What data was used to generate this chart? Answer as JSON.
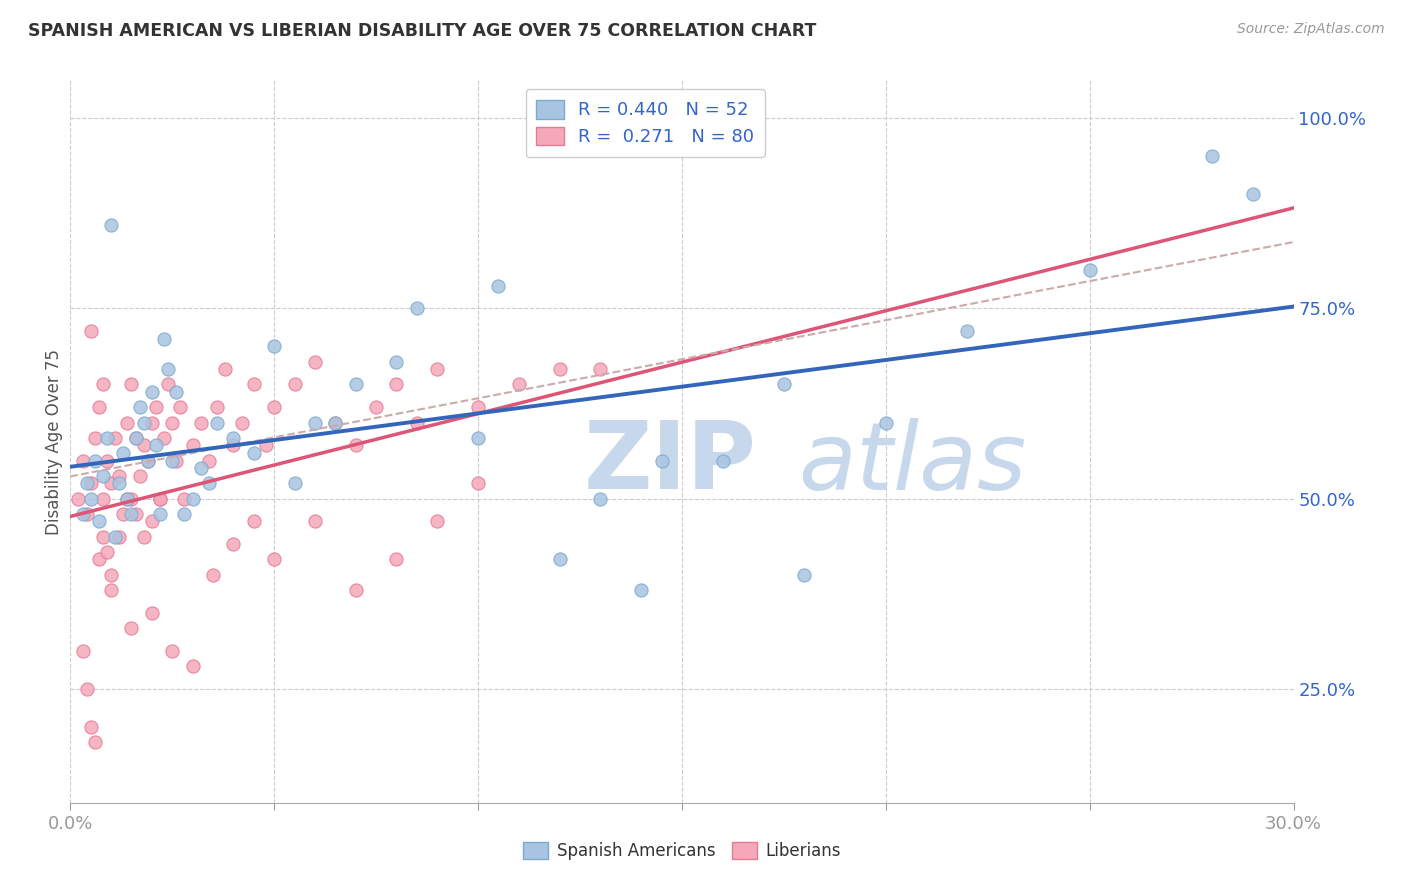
{
  "title": "SPANISH AMERICAN VS LIBERIAN DISABILITY AGE OVER 75 CORRELATION CHART",
  "source_text": "Source: ZipAtlas.com",
  "ylabel": "Disability Age Over 75",
  "xlim": [
    0.0,
    0.3
  ],
  "ylim": [
    0.1,
    1.05
  ],
  "ytick_labels": [
    "25.0%",
    "50.0%",
    "75.0%",
    "100.0%"
  ],
  "ytick_positions": [
    0.25,
    0.5,
    0.75,
    1.0
  ],
  "legend_R1": "R = 0.440",
  "legend_N1": "N = 52",
  "legend_R2": "R = 0.271",
  "legend_N2": "N = 80",
  "blue_color": "#A8C4E0",
  "blue_edge_color": "#7AAAD0",
  "pink_color": "#F4A8B8",
  "pink_edge_color": "#E87898",
  "blue_line_color": "#3366BB",
  "pink_line_color": "#DD5577",
  "dash_line_color": "#CCAAAA",
  "watermark_zip": "ZIP",
  "watermark_atlas": "atlas",
  "blue_scatter_x": [
    0.003,
    0.004,
    0.005,
    0.006,
    0.007,
    0.008,
    0.009,
    0.01,
    0.011,
    0.012,
    0.013,
    0.014,
    0.015,
    0.016,
    0.017,
    0.018,
    0.019,
    0.02,
    0.021,
    0.022,
    0.023,
    0.024,
    0.025,
    0.026,
    0.028,
    0.03,
    0.032,
    0.034,
    0.036,
    0.04,
    0.045,
    0.05,
    0.06,
    0.07,
    0.08,
    0.1,
    0.12,
    0.14,
    0.16,
    0.18,
    0.2,
    0.22,
    0.25,
    0.28,
    0.145,
    0.175,
    0.105,
    0.085,
    0.055,
    0.065,
    0.29,
    0.13
  ],
  "blue_scatter_y": [
    0.48,
    0.52,
    0.5,
    0.55,
    0.47,
    0.53,
    0.58,
    0.86,
    0.45,
    0.52,
    0.56,
    0.5,
    0.48,
    0.58,
    0.62,
    0.6,
    0.55,
    0.64,
    0.57,
    0.48,
    0.71,
    0.67,
    0.55,
    0.64,
    0.48,
    0.5,
    0.54,
    0.52,
    0.6,
    0.58,
    0.56,
    0.7,
    0.6,
    0.65,
    0.68,
    0.58,
    0.42,
    0.38,
    0.55,
    0.4,
    0.6,
    0.72,
    0.8,
    0.95,
    0.55,
    0.65,
    0.78,
    0.75,
    0.52,
    0.6,
    0.9,
    0.5
  ],
  "pink_scatter_x": [
    0.002,
    0.003,
    0.004,
    0.005,
    0.005,
    0.006,
    0.007,
    0.008,
    0.008,
    0.009,
    0.01,
    0.011,
    0.012,
    0.013,
    0.014,
    0.015,
    0.015,
    0.016,
    0.017,
    0.018,
    0.019,
    0.02,
    0.021,
    0.022,
    0.023,
    0.024,
    0.025,
    0.026,
    0.027,
    0.028,
    0.03,
    0.032,
    0.034,
    0.036,
    0.038,
    0.04,
    0.042,
    0.045,
    0.048,
    0.05,
    0.055,
    0.06,
    0.065,
    0.07,
    0.075,
    0.08,
    0.085,
    0.09,
    0.1,
    0.11,
    0.12,
    0.13,
    0.01,
    0.015,
    0.02,
    0.025,
    0.03,
    0.035,
    0.04,
    0.045,
    0.05,
    0.06,
    0.07,
    0.08,
    0.09,
    0.1,
    0.003,
    0.004,
    0.005,
    0.006,
    0.007,
    0.008,
    0.009,
    0.01,
    0.012,
    0.014,
    0.016,
    0.018,
    0.02,
    0.022
  ],
  "pink_scatter_y": [
    0.5,
    0.55,
    0.48,
    0.52,
    0.72,
    0.58,
    0.62,
    0.65,
    0.5,
    0.55,
    0.52,
    0.58,
    0.53,
    0.48,
    0.6,
    0.65,
    0.5,
    0.58,
    0.53,
    0.57,
    0.55,
    0.6,
    0.62,
    0.5,
    0.58,
    0.65,
    0.6,
    0.55,
    0.62,
    0.5,
    0.57,
    0.6,
    0.55,
    0.62,
    0.67,
    0.57,
    0.6,
    0.65,
    0.57,
    0.62,
    0.65,
    0.68,
    0.6,
    0.57,
    0.62,
    0.65,
    0.6,
    0.67,
    0.62,
    0.65,
    0.67,
    0.67,
    0.38,
    0.33,
    0.35,
    0.3,
    0.28,
    0.4,
    0.44,
    0.47,
    0.42,
    0.47,
    0.38,
    0.42,
    0.47,
    0.52,
    0.3,
    0.25,
    0.2,
    0.18,
    0.42,
    0.45,
    0.43,
    0.4,
    0.45,
    0.5,
    0.48,
    0.45,
    0.47,
    0.5
  ]
}
